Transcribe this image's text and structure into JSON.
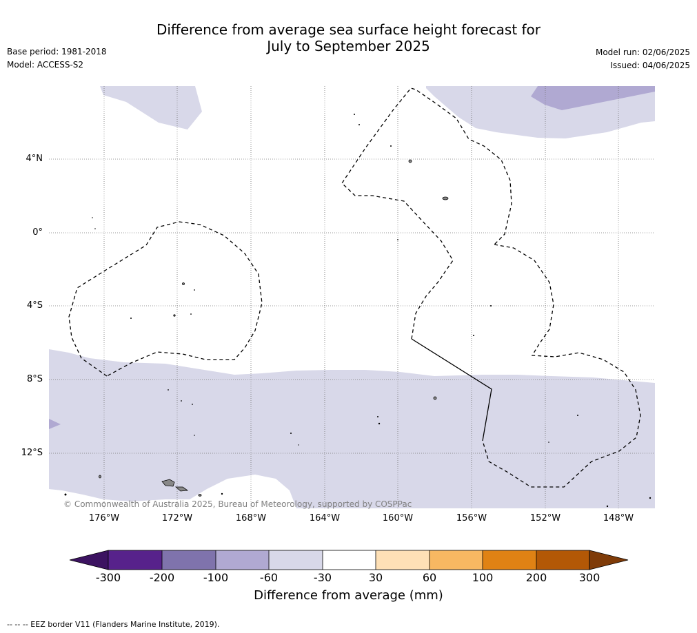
{
  "title": {
    "line1": "Difference from average sea surface height forecast for",
    "line2": "July to September 2025"
  },
  "meta": {
    "base_period": "Base period: 1981-2018",
    "model": "Model: ACCESS-S2",
    "model_run": "Model run: 02/06/2025",
    "issued": "Issued: 04/06/2025"
  },
  "map": {
    "lat_ticks": [
      "4°N",
      "0°",
      "4°S",
      "8°S",
      "12°S"
    ],
    "lon_ticks": [
      "176°W",
      "172°W",
      "168°W",
      "164°W",
      "160°W",
      "156°W",
      "152°W",
      "148°W"
    ],
    "copyright": "© Commonwealth of Australia 2025, Bureau of Meteorology, supported by COSPPac",
    "land_color": "#888888",
    "border_style": "dashed",
    "anomaly_fill_colors": {
      "-60_to_-30": "#d8d8e9",
      "-100_to_-60": "#b0a9d2"
    }
  },
  "colorbar": {
    "label": "Difference from average (mm)",
    "ticks": [
      "-300",
      "-200",
      "-100",
      "-60",
      "-30",
      "30",
      "60",
      "100",
      "200",
      "300"
    ],
    "colors": [
      "#3c1361",
      "#57228b",
      "#7f73ac",
      "#b0a9d2",
      "#d8d8e9",
      "#ffffff",
      "#fee0b6",
      "#f8b862",
      "#e08214",
      "#b35806",
      "#7f3b08"
    ]
  },
  "footnote": "--  --  -- EEZ border V11 (Flanders Marine Institute, 2019)."
}
